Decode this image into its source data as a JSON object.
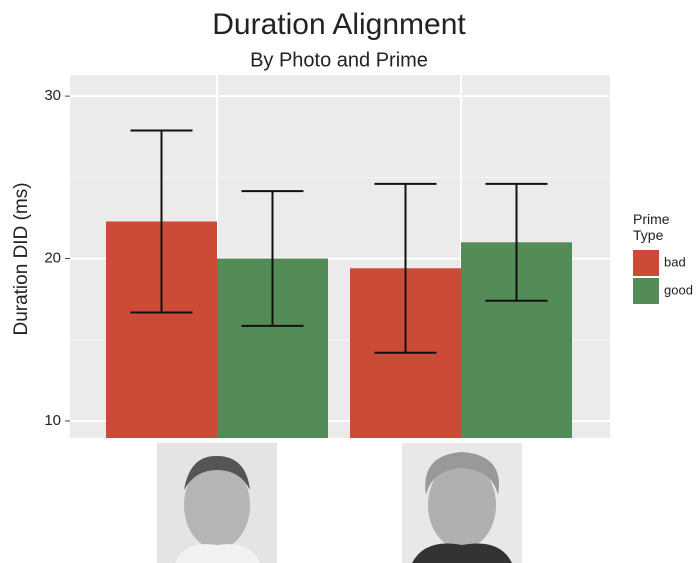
{
  "chart_data": {
    "type": "bar",
    "title": "Duration Alignment",
    "subtitle": "By Photo and Prime",
    "y_label": "Duration DID (ms)",
    "legend_title": "Prime Type",
    "categories": [
      null,
      null
    ],
    "series": [
      {
        "name": "bad",
        "color": "#cc4b37",
        "values": [
          22.28,
          19.4
        ],
        "errors": [
          5.6,
          5.2
        ]
      },
      {
        "name": "good",
        "color": "#538c56",
        "values": [
          20.0,
          21.0
        ],
        "errors": [
          4.15,
          3.6
        ]
      }
    ],
    "ylim": [
      8.95,
      31.3
    ],
    "yticks": [
      10,
      20,
      30
    ],
    "grid": true,
    "legend": "right"
  }
}
